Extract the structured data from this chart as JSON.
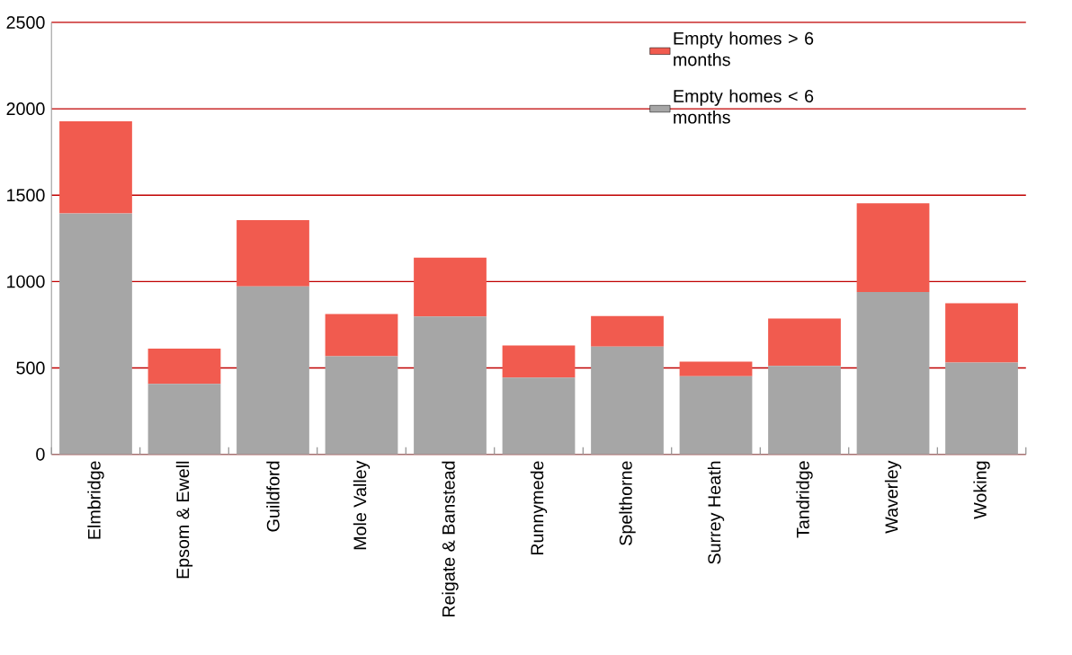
{
  "chart_data": {
    "type": "bar",
    "stacked": true,
    "categories": [
      "Elmbridge",
      "Epsom & Ewell",
      "Guildford",
      "Mole Valley",
      "Reigate & Banstead",
      "Runnymede",
      "Spelthorne",
      "Surrey Heath",
      "Tandridge",
      "Waverley",
      "Woking"
    ],
    "series": [
      {
        "name": "Empty homes < 6 months",
        "color": "#a6a6a6",
        "values": [
          1395,
          408,
          972,
          568,
          798,
          444,
          623,
          452,
          512,
          940,
          531
        ]
      },
      {
        "name": "Empty homes > 6 months",
        "color": "#f15b4f",
        "values": [
          533,
          204,
          384,
          244,
          340,
          186,
          177,
          84,
          274,
          513,
          344
        ]
      }
    ],
    "ylim": [
      0,
      2500
    ],
    "yticks": [
      0,
      500,
      1000,
      1500,
      2000,
      2500
    ],
    "grid": "y",
    "legend": "top right"
  }
}
